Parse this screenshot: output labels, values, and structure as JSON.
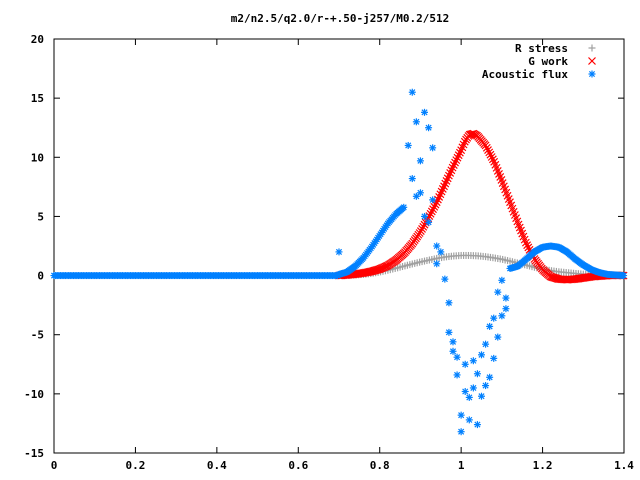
{
  "chart_data": {
    "type": "scatter",
    "title": "m2/n2.5/q2.0/r-+.50-j257/M0.2/512",
    "xlabel": "",
    "ylabel": "",
    "xlim": [
      0,
      1.4
    ],
    "ylim": [
      -15,
      20
    ],
    "x_ticks": [
      "0",
      "0.2",
      "0.4",
      "0.6",
      "0.8",
      "1",
      "1.2",
      "1.4"
    ],
    "y_ticks": [
      "-15",
      "-10",
      "-5",
      "0",
      "5",
      "10",
      "15",
      "20"
    ],
    "grid": false,
    "legend_position": "top-right",
    "series": [
      {
        "name": "R stress",
        "marker": "plus",
        "color": "#a0a0a0",
        "points": [
          [
            0.7,
            0.0
          ],
          [
            0.72,
            0.02
          ],
          [
            0.74,
            0.05
          ],
          [
            0.76,
            0.1
          ],
          [
            0.78,
            0.18
          ],
          [
            0.8,
            0.3
          ],
          [
            0.82,
            0.45
          ],
          [
            0.84,
            0.62
          ],
          [
            0.86,
            0.8
          ],
          [
            0.88,
            0.98
          ],
          [
            0.9,
            1.15
          ],
          [
            0.92,
            1.3
          ],
          [
            0.94,
            1.45
          ],
          [
            0.96,
            1.57
          ],
          [
            0.98,
            1.65
          ],
          [
            1.0,
            1.7
          ],
          [
            1.02,
            1.7
          ],
          [
            1.04,
            1.67
          ],
          [
            1.06,
            1.6
          ],
          [
            1.08,
            1.5
          ],
          [
            1.1,
            1.38
          ],
          [
            1.12,
            1.22
          ],
          [
            1.14,
            1.05
          ],
          [
            1.16,
            0.88
          ],
          [
            1.18,
            0.7
          ],
          [
            1.2,
            0.55
          ],
          [
            1.22,
            0.42
          ],
          [
            1.24,
            0.32
          ],
          [
            1.26,
            0.25
          ],
          [
            1.28,
            0.18
          ],
          [
            1.3,
            0.12
          ],
          [
            1.32,
            0.08
          ],
          [
            1.34,
            0.05
          ],
          [
            1.36,
            0.03
          ],
          [
            1.38,
            0.01
          ],
          [
            1.4,
            0.0
          ]
        ]
      },
      {
        "name": "G work",
        "marker": "cross",
        "color": "#ff0000",
        "points": [
          [
            0.7,
            0.0
          ],
          [
            0.72,
            0.05
          ],
          [
            0.74,
            0.12
          ],
          [
            0.76,
            0.22
          ],
          [
            0.78,
            0.35
          ],
          [
            0.8,
            0.55
          ],
          [
            0.82,
            0.85
          ],
          [
            0.84,
            1.3
          ],
          [
            0.86,
            1.9
          ],
          [
            0.88,
            2.7
          ],
          [
            0.9,
            3.7
          ],
          [
            0.92,
            4.9
          ],
          [
            0.94,
            6.2
          ],
          [
            0.96,
            7.7
          ],
          [
            0.98,
            9.2
          ],
          [
            1.0,
            10.6
          ],
          [
            1.01,
            11.4
          ],
          [
            1.02,
            11.9
          ],
          [
            1.03,
            12.0
          ],
          [
            1.04,
            11.8
          ],
          [
            1.06,
            11.0
          ],
          [
            1.08,
            9.7
          ],
          [
            1.1,
            8.0
          ],
          [
            1.12,
            6.2
          ],
          [
            1.14,
            4.4
          ],
          [
            1.16,
            2.7
          ],
          [
            1.18,
            1.4
          ],
          [
            1.2,
            0.5
          ],
          [
            1.22,
            -0.1
          ],
          [
            1.24,
            -0.3
          ],
          [
            1.26,
            -0.35
          ],
          [
            1.28,
            -0.3
          ],
          [
            1.3,
            -0.2
          ],
          [
            1.32,
            -0.1
          ],
          [
            1.34,
            -0.05
          ],
          [
            1.36,
            0.0
          ],
          [
            1.38,
            0.02
          ],
          [
            1.4,
            0.0
          ]
        ]
      },
      {
        "name": "Acoustic flux",
        "marker": "star",
        "color": "#0080ff",
        "points": [
          [
            0.0,
            0.0
          ],
          [
            0.1,
            0.0
          ],
          [
            0.2,
            0.0
          ],
          [
            0.3,
            0.0
          ],
          [
            0.4,
            0.0
          ],
          [
            0.5,
            0.0
          ],
          [
            0.6,
            0.0
          ],
          [
            0.66,
            0.0
          ],
          [
            0.7,
            0.1
          ],
          [
            0.7,
            2.0
          ],
          [
            0.72,
            0.3
          ],
          [
            0.74,
            0.8
          ],
          [
            0.76,
            1.5
          ],
          [
            0.78,
            2.4
          ],
          [
            0.8,
            3.4
          ],
          [
            0.82,
            4.4
          ],
          [
            0.84,
            5.2
          ],
          [
            0.86,
            5.8
          ],
          [
            0.86,
            10.5
          ],
          [
            0.87,
            11.0
          ],
          [
            0.88,
            15.5
          ],
          [
            0.88,
            8.2
          ],
          [
            0.89,
            6.7
          ],
          [
            0.89,
            13.0
          ],
          [
            0.9,
            7.0
          ],
          [
            0.9,
            9.7
          ],
          [
            0.91,
            13.8
          ],
          [
            0.91,
            5.0
          ],
          [
            0.92,
            12.5
          ],
          [
            0.92,
            4.5
          ],
          [
            0.93,
            10.8
          ],
          [
            0.93,
            6.4
          ],
          [
            0.94,
            2.5
          ],
          [
            0.94,
            1.0
          ],
          [
            0.95,
            2.0
          ],
          [
            0.96,
            -0.3
          ],
          [
            0.97,
            -2.3
          ],
          [
            0.97,
            -4.8
          ],
          [
            0.98,
            -5.6
          ],
          [
            0.98,
            -6.4
          ],
          [
            0.99,
            -8.4
          ],
          [
            0.99,
            -6.9
          ],
          [
            1.0,
            -13.2
          ],
          [
            1.0,
            -11.8
          ],
          [
            1.01,
            -9.8
          ],
          [
            1.01,
            -7.5
          ],
          [
            1.02,
            -12.2
          ],
          [
            1.02,
            -10.3
          ],
          [
            1.03,
            -9.5
          ],
          [
            1.03,
            -7.2
          ],
          [
            1.04,
            -12.6
          ],
          [
            1.04,
            -8.3
          ],
          [
            1.05,
            -10.2
          ],
          [
            1.05,
            -6.7
          ],
          [
            1.06,
            -9.3
          ],
          [
            1.06,
            -5.8
          ],
          [
            1.07,
            -8.6
          ],
          [
            1.07,
            -4.3
          ],
          [
            1.08,
            -7.0
          ],
          [
            1.08,
            -3.6
          ],
          [
            1.09,
            -5.2
          ],
          [
            1.09,
            -1.4
          ],
          [
            1.1,
            -3.4
          ],
          [
            1.1,
            -0.4
          ],
          [
            1.11,
            -2.8
          ],
          [
            1.11,
            -1.9
          ],
          [
            1.12,
            -0.3
          ],
          [
            1.12,
            0.6
          ],
          [
            1.14,
            0.8
          ],
          [
            1.16,
            1.4
          ],
          [
            1.18,
            2.0
          ],
          [
            1.2,
            2.4
          ],
          [
            1.22,
            2.5
          ],
          [
            1.24,
            2.4
          ],
          [
            1.26,
            2.0
          ],
          [
            1.28,
            1.4
          ],
          [
            1.3,
            0.9
          ],
          [
            1.32,
            0.5
          ],
          [
            1.34,
            0.25
          ],
          [
            1.36,
            0.1
          ],
          [
            1.38,
            0.05
          ],
          [
            1.4,
            0.0
          ]
        ]
      }
    ]
  }
}
